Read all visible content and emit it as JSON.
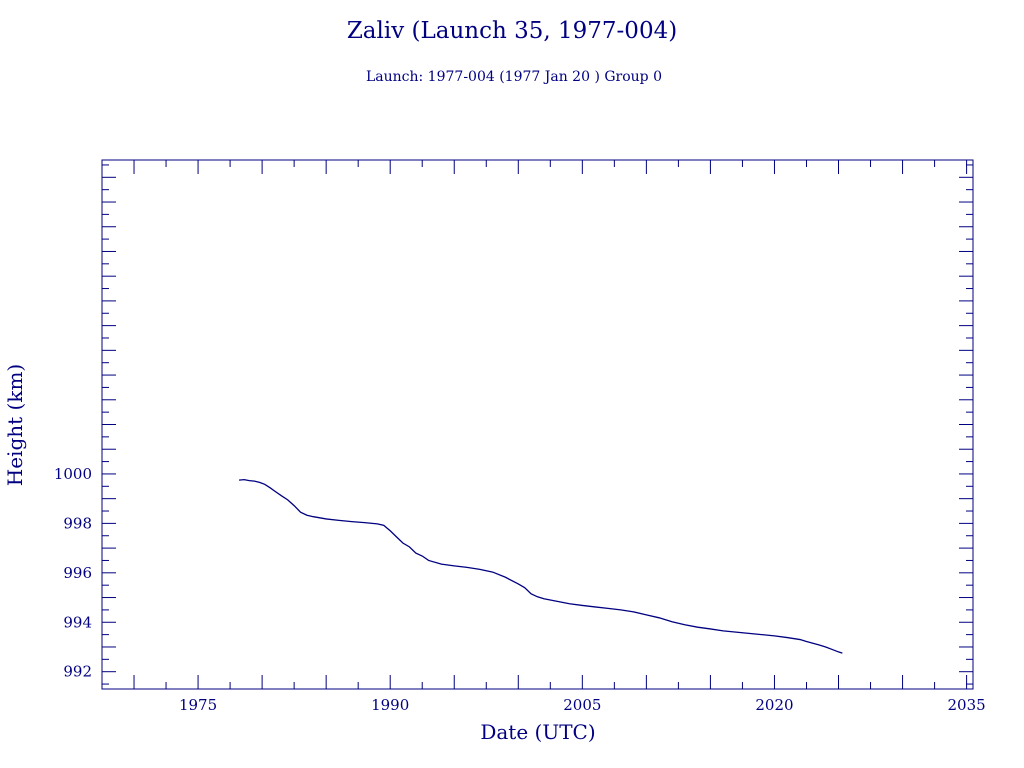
{
  "chart_data": {
    "type": "line",
    "title": "Zaliv (Launch 35, 1977-004)",
    "subtitle": "Launch: 1977-004  (1977 Jan 20 )  Group 0",
    "xlabel": "Date (UTC)",
    "ylabel": "Height (km)",
    "xlim": [
      1967.5,
      2035.5
    ],
    "ylim": [
      991.3,
      1012.7
    ],
    "x_ticks": [
      1975,
      1990,
      2005,
      2020,
      2035
    ],
    "y_ticks": [
      992,
      994,
      996,
      998,
      1000
    ],
    "grid": false,
    "line_color": "#000080",
    "text_color": "#000080",
    "series": [
      {
        "x": [
          1978.2,
          1978.6,
          1979.0,
          1979.4,
          1979.8,
          1980.2,
          1980.6,
          1981.0,
          1981.5,
          1982.0,
          1982.5,
          1983.0,
          1983.5,
          1984.0,
          1985.0,
          1986.0,
          1987.0,
          1988.0,
          1989.0,
          1989.5,
          1990.0,
          1990.5,
          1991.0,
          1991.5,
          1992.0,
          1992.5,
          1993.0,
          1994.0,
          1995.0,
          1996.0,
          1997.0,
          1998.0,
          1999.0,
          2000.0,
          2000.5,
          2001.0,
          2001.5,
          2002.0,
          2002.5,
          2003.0,
          2004.0,
          2005.0,
          2006.0,
          2007.0,
          2008.0,
          2009.0,
          2010.0,
          2011.0,
          2012.0,
          2013.0,
          2014.0,
          2015.0,
          2016.0,
          2017.0,
          2018.0,
          2019.0,
          2020.0,
          2021.0,
          2022.0,
          2022.5,
          2023.0,
          2023.5,
          2024.0,
          2024.5,
          2025.0,
          2025.3
        ],
        "y": [
          999.75,
          999.77,
          999.73,
          999.71,
          999.66,
          999.58,
          999.45,
          999.3,
          999.12,
          998.95,
          998.72,
          998.45,
          998.33,
          998.27,
          998.18,
          998.12,
          998.07,
          998.03,
          997.98,
          997.92,
          997.7,
          997.45,
          997.2,
          997.05,
          996.8,
          996.68,
          996.5,
          996.35,
          996.28,
          996.22,
          996.14,
          996.03,
          995.82,
          995.55,
          995.4,
          995.15,
          995.03,
          994.95,
          994.9,
          994.85,
          994.75,
          994.68,
          994.62,
          994.56,
          994.5,
          994.42,
          994.3,
          994.18,
          994.02,
          993.9,
          993.8,
          993.73,
          993.65,
          993.6,
          993.55,
          993.5,
          993.45,
          993.38,
          993.3,
          993.22,
          993.15,
          993.08,
          993.0,
          992.9,
          992.8,
          992.75
        ]
      }
    ]
  }
}
